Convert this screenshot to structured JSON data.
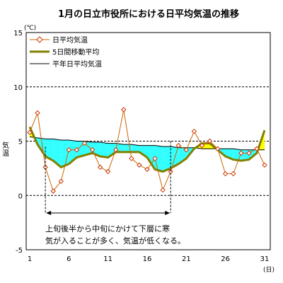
{
  "chart_data": {
    "type": "line",
    "title": "1月の日立市役所における日平均気温の推移",
    "ylabel": "気温",
    "yunit": "(℃)",
    "xunit": "(日)",
    "ylim": [
      -5,
      15
    ],
    "xlim": [
      1,
      31
    ],
    "yticks": [
      -5,
      0,
      5,
      10,
      15
    ],
    "xticks": [
      1,
      6,
      11,
      16,
      21,
      26,
      31
    ],
    "grid": "horizontal dashed at 0, 5, 10",
    "legend_position": "top-left",
    "x": [
      1,
      2,
      3,
      4,
      5,
      6,
      7,
      8,
      9,
      10,
      11,
      12,
      13,
      14,
      15,
      16,
      17,
      18,
      19,
      20,
      21,
      22,
      23,
      24,
      25,
      26,
      27,
      28,
      29,
      30,
      31
    ],
    "series": [
      {
        "name": "日平均気温",
        "color": "#cc6600",
        "marker": "open-diamond",
        "values": [
          5.8,
          7.6,
          2.6,
          0.4,
          1.3,
          4.2,
          4.2,
          4.8,
          4.2,
          2.6,
          2.2,
          4.2,
          7.9,
          3.4,
          2.8,
          2.4,
          3.4,
          0.5,
          2.2,
          4.6,
          4.2,
          5.9,
          4.6,
          5.0,
          4.3,
          2.0,
          2.0,
          3.9,
          3.9,
          4.3,
          2.8
        ]
      },
      {
        "name": "5日間移動平均",
        "color": "#808000",
        "values": [
          6.3,
          4.7,
          3.6,
          3.2,
          2.6,
          2.9,
          3.5,
          3.7,
          3.9,
          3.6,
          3.5,
          4.0,
          4.0,
          4.0,
          4.0,
          3.5,
          2.4,
          2.2,
          2.5,
          2.9,
          3.4,
          4.3,
          4.8,
          4.8,
          4.2,
          3.6,
          3.3,
          3.2,
          3.3,
          3.9,
          6.0
        ]
      },
      {
        "name": "平年日平均気温",
        "color": "#000000",
        "values": [
          5.4,
          5.3,
          5.2,
          5.2,
          5.1,
          5.1,
          5.0,
          5.0,
          4.9,
          4.9,
          4.8,
          4.8,
          4.7,
          4.7,
          4.6,
          4.6,
          4.6,
          4.5,
          4.5,
          4.4,
          4.4,
          4.4,
          4.3,
          4.3,
          4.3,
          4.3,
          4.3,
          4.2,
          4.2,
          4.2,
          4.2
        ]
      }
    ],
    "fill_below_normal_color": "#33ffff",
    "fill_above_normal_color": "#ffff00",
    "annotation": {
      "text_line1": "上旬後半から中旬にかけて下層に寒",
      "text_line2": "気が入ることが多く、気温が低くなる。",
      "range_start": 3,
      "range_end": 19
    }
  }
}
